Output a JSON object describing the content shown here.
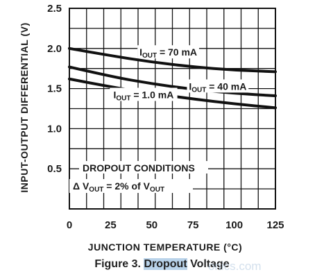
{
  "chart_data": {
    "type": "line",
    "title": "",
    "xlabel": "JUNCTION TEMPERATURE (°C)",
    "ylabel": "INPUT-OUTPUT DIFFERENTIAL (V)",
    "xlim": [
      0,
      125
    ],
    "ylim": [
      0,
      2.5
    ],
    "x_ticks": [
      0,
      25,
      50,
      75,
      100,
      125
    ],
    "y_ticks": [
      0.5,
      1.0,
      1.5,
      2.0,
      2.5
    ],
    "x_tick_labels": [
      "0",
      "25",
      "50",
      "75",
      "100",
      "125"
    ],
    "y_tick_labels": [
      "0.5",
      "1.0",
      "1.5",
      "2.0",
      "2.5"
    ],
    "grid": true,
    "series": [
      {
        "name": "I_OUT = 70 mA",
        "x": [
          0,
          25,
          50,
          75,
          100,
          125
        ],
        "values": [
          2.0,
          1.91,
          1.83,
          1.77,
          1.73,
          1.71
        ]
      },
      {
        "name": "I_OUT = 40 mA",
        "x": [
          0,
          25,
          50,
          75,
          100,
          125
        ],
        "values": [
          1.77,
          1.65,
          1.56,
          1.49,
          1.44,
          1.41
        ]
      },
      {
        "name": "I_OUT = 1.0 mA",
        "x": [
          0,
          25,
          50,
          75,
          100,
          125
        ],
        "values": [
          1.62,
          1.52,
          1.44,
          1.37,
          1.31,
          1.26
        ]
      }
    ],
    "curve_labels": [
      {
        "main": "I",
        "sub": "OUT",
        "rest": " = 70 mA"
      },
      {
        "main": "I",
        "sub": "OUT",
        "rest": " = 40 mA"
      },
      {
        "main": "I",
        "sub": "OUT",
        "rest": " = 1.0 mA"
      }
    ],
    "conditions": {
      "heading": "DROPOUT CONDITIONS",
      "line_prefix": "Δ V",
      "line_sub1": "OUT",
      "line_mid": " = 2% of V",
      "line_sub2": "OUT"
    }
  },
  "caption": {
    "prefix": "Figure 3. ",
    "highlight": "Dropout",
    "suffix": " Voltage"
  },
  "watermark": "onics.com"
}
